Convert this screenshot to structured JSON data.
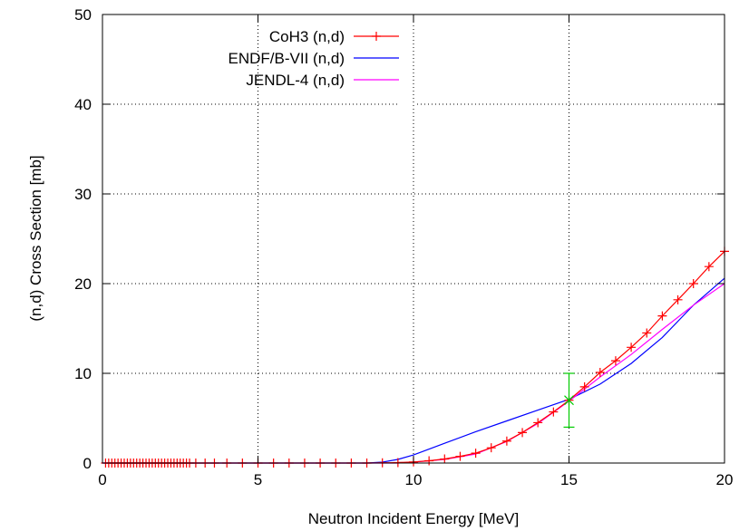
{
  "chart_data": {
    "type": "line",
    "xlabel": "Neutron Incident Energy [MeV]",
    "ylabel": "(n,d) Cross Section [mb]",
    "xlim": [
      0,
      20
    ],
    "ylim": [
      0,
      50
    ],
    "xticks": [
      "0",
      "5",
      "10",
      "15",
      "20"
    ],
    "yticks": [
      "0",
      "10",
      "20",
      "30",
      "40",
      "50"
    ],
    "grid": true,
    "legend_position": "top-left",
    "series": [
      {
        "name": "CoH3 (n,d)",
        "color": "#ff0000",
        "marker": "plus",
        "x": [
          0.1,
          0.2,
          0.3,
          0.4,
          0.5,
          0.6,
          0.7,
          0.8,
          0.9,
          1.0,
          1.1,
          1.2,
          1.3,
          1.4,
          1.5,
          1.6,
          1.7,
          1.8,
          1.9,
          2.0,
          2.1,
          2.2,
          2.3,
          2.4,
          2.5,
          2.6,
          2.7,
          2.8,
          3.0,
          3.3,
          3.6,
          4.0,
          4.5,
          5.0,
          5.5,
          6.0,
          6.5,
          7.0,
          7.5,
          8.0,
          8.5,
          9.0,
          9.5,
          10.0,
          10.5,
          11.0,
          11.5,
          12.0,
          12.5,
          13.0,
          13.5,
          14.0,
          14.5,
          15.0,
          15.5,
          16.0,
          16.5,
          17.0,
          17.5,
          18.0,
          18.5,
          19.0,
          19.5,
          20.0
        ],
        "y": [
          0,
          0,
          0,
          0,
          0,
          0,
          0,
          0,
          0,
          0,
          0,
          0,
          0,
          0,
          0,
          0,
          0,
          0,
          0,
          0,
          0,
          0,
          0,
          0,
          0,
          0,
          0,
          0,
          0,
          0,
          0,
          0,
          0,
          0,
          0,
          0,
          0,
          0,
          0,
          0,
          0,
          0.02,
          0.05,
          0.12,
          0.25,
          0.45,
          0.75,
          1.1,
          1.7,
          2.45,
          3.4,
          4.5,
          5.7,
          7.0,
          8.5,
          10.1,
          11.4,
          12.9,
          14.5,
          16.4,
          18.2,
          20.0,
          21.9,
          23.6
        ]
      },
      {
        "name": "ENDF/B-VII (n,d)",
        "color": "#0000ff",
        "marker": "none",
        "x": [
          0,
          8.5,
          9,
          9.5,
          10,
          11,
          12,
          13,
          14,
          15,
          16,
          17,
          18,
          19,
          20
        ],
        "y": [
          0,
          0,
          0.1,
          0.4,
          0.9,
          2.2,
          3.5,
          4.7,
          5.9,
          7.1,
          8.8,
          11.1,
          14.0,
          17.6,
          20.6
        ]
      },
      {
        "name": "JENDL-4 (n,d)",
        "color": "#ff00ff",
        "marker": "none",
        "x": [
          0,
          9.5,
          10,
          11,
          12,
          13,
          14,
          15,
          16,
          17,
          18,
          19,
          20
        ],
        "y": [
          0,
          0,
          0.1,
          0.4,
          1.0,
          2.4,
          4.4,
          6.9,
          9.6,
          12.1,
          14.9,
          17.6,
          20.0
        ]
      },
      {
        "name": "",
        "color": "#00cc00",
        "marker": "cross",
        "x": [
          15.0
        ],
        "y": [
          7.0
        ],
        "yerr_low": [
          4.0
        ],
        "yerr_high": [
          10.0
        ]
      }
    ]
  }
}
